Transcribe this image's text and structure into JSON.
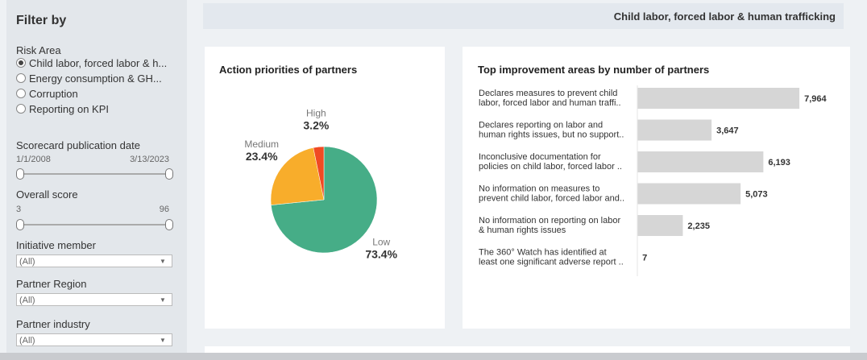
{
  "sidebar": {
    "title": "Filter by",
    "risk_area": {
      "label": "Risk Area",
      "options": [
        "Child labor, forced labor & h...",
        "Energy consumption & GH...",
        "Corruption",
        "Reporting on KPI"
      ],
      "selected": 0
    },
    "date_filter": {
      "label": "Scorecard publication date",
      "min": "1/1/2008",
      "max": "3/13/2023"
    },
    "score_filter": {
      "label": "Overall score",
      "min": "3",
      "max": "96"
    },
    "dropdowns": [
      {
        "label": "Initiative member",
        "value": "(All)"
      },
      {
        "label": "Partner Region",
        "value": "(All)"
      },
      {
        "label": "Partner industry",
        "value": "(All)"
      }
    ]
  },
  "header": {
    "title": "Child labor, forced labor & human trafficking"
  },
  "chart_data": [
    {
      "type": "pie",
      "title": "Action priorities of partners",
      "categories": [
        "Low",
        "Medium",
        "High"
      ],
      "values": [
        73.4,
        23.4,
        3.2
      ],
      "value_labels": [
        "73.4%",
        "23.4%",
        "3.2%"
      ],
      "colors": [
        "#46ad87",
        "#f8ad2b",
        "#f04a23"
      ]
    },
    {
      "type": "barh",
      "title": "Top improvement areas by number of partners",
      "categories": [
        [
          "Declares measures to prevent child",
          "labor, forced labor and human traffi.."
        ],
        [
          "Declares reporting on labor and",
          "human rights issues, but no support.."
        ],
        [
          "Inconclusive documentation for",
          "policies on child labor, forced labor .."
        ],
        [
          "No information on measures to",
          "prevent child labor, forced labor and.."
        ],
        [
          "No information on reporting on labor",
          "& human rights issues"
        ],
        [
          "The 360° Watch has identified at",
          "least one significant adverse report .."
        ]
      ],
      "values": [
        7964,
        3647,
        6193,
        5073,
        2235,
        7
      ],
      "value_labels": [
        "7,964",
        "3,647",
        "6,193",
        "5,073",
        "2,235",
        "7"
      ],
      "color": "#d6d6d6",
      "xlim": [
        0,
        8000
      ]
    }
  ]
}
